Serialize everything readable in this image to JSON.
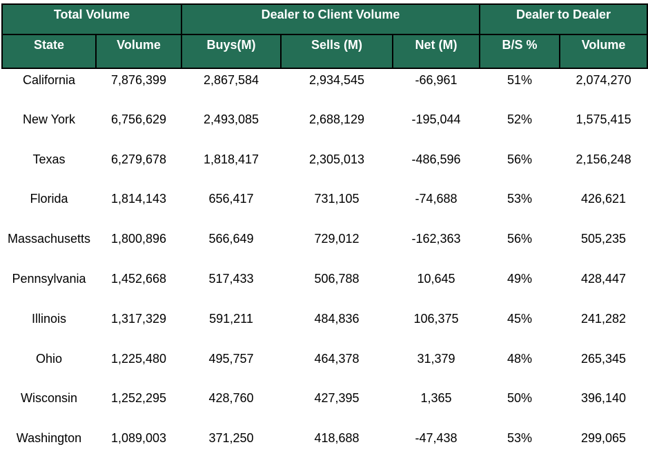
{
  "header": {
    "groups": [
      {
        "label": "Total Volume",
        "span": 2
      },
      {
        "label": "Dealer to Client Volume",
        "span": 3
      },
      {
        "label": "Dealer to Dealer",
        "span": 2
      }
    ],
    "columns": [
      "State",
      "Volume",
      "Buys(M)",
      "Sells (M)",
      "Net (M)",
      "B/S %",
      "Volume"
    ]
  },
  "rows": [
    [
      "California",
      "7,876,399",
      "2,867,584",
      "2,934,545",
      "-66,961",
      "51%",
      "2,074,270"
    ],
    [
      "New York",
      "6,756,629",
      "2,493,085",
      "2,688,129",
      "-195,044",
      "52%",
      "1,575,415"
    ],
    [
      "Texas",
      "6,279,678",
      "1,818,417",
      "2,305,013",
      "-486,596",
      "56%",
      "2,156,248"
    ],
    [
      "Florida",
      "1,814,143",
      "656,417",
      "731,105",
      "-74,688",
      "53%",
      "426,621"
    ],
    [
      "Massachusetts",
      "1,800,896",
      "566,649",
      "729,012",
      "-162,363",
      "56%",
      "505,235"
    ],
    [
      "Pennsylvania",
      "1,452,668",
      "517,433",
      "506,788",
      "10,645",
      "49%",
      "428,447"
    ],
    [
      "Illinois",
      "1,317,329",
      "591,211",
      "484,836",
      "106,375",
      "45%",
      "241,282"
    ],
    [
      "Ohio",
      "1,225,480",
      "495,757",
      "464,378",
      "31,379",
      "48%",
      "265,345"
    ],
    [
      "Wisconsin",
      "1,252,295",
      "428,760",
      "427,395",
      "1,365",
      "50%",
      "396,140"
    ],
    [
      "Washington",
      "1,089,003",
      "371,250",
      "418,688",
      "-47,438",
      "53%",
      "299,065"
    ]
  ],
  "colors": {
    "header_background": "#246e55",
    "header_text": "#ffffff",
    "border": "#000000"
  }
}
